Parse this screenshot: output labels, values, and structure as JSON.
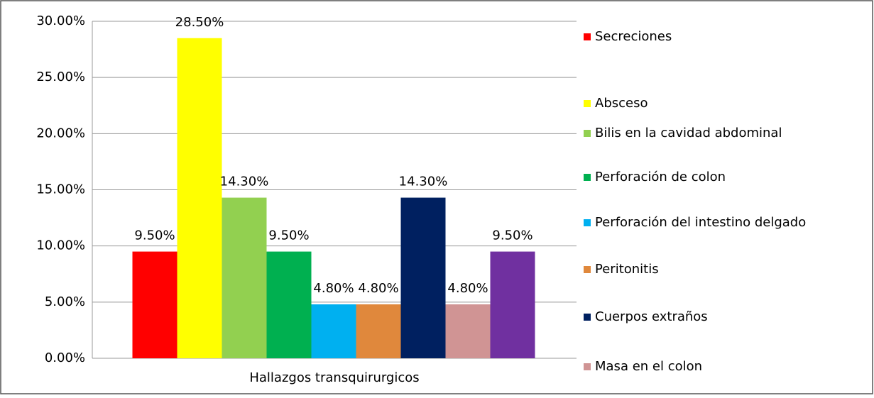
{
  "chart_data": {
    "type": "bar",
    "categories": [
      "Hallazgos transquirurgicos"
    ],
    "series": [
      {
        "name": "Secreciones",
        "color": "#ff0000",
        "values": [
          9.5
        ],
        "value_labels": [
          "9.50%"
        ]
      },
      {
        "name": "Absceso",
        "color": "#ffff00",
        "values": [
          28.5
        ],
        "value_labels": [
          "28.50%"
        ]
      },
      {
        "name": "Bilis en la cavidad abdominal",
        "color": "#92d050",
        "values": [
          14.3
        ],
        "value_labels": [
          "14.30%"
        ]
      },
      {
        "name": "Perforación de colon",
        "color": "#00b050",
        "values": [
          9.5
        ],
        "value_labels": [
          "9.50%"
        ]
      },
      {
        "name": "Perforación del intestino delgado",
        "color": "#00b0f0",
        "values": [
          4.8
        ],
        "value_labels": [
          "4.80%"
        ]
      },
      {
        "name": "Peritonitis",
        "color": "#e0883c",
        "values": [
          4.8
        ],
        "value_labels": [
          "4.80%"
        ]
      },
      {
        "name": "Cuerpos extraños",
        "color": "#002060",
        "values": [
          14.3
        ],
        "value_labels": [
          "14.30%"
        ]
      },
      {
        "name": "Masa en el colon",
        "color": "#d09494",
        "values": [
          4.8
        ],
        "value_labels": [
          "4.80%"
        ]
      },
      {
        "color": "#7030a0",
        "values": [
          9.5
        ],
        "value_labels": [
          "9.50%"
        ]
      }
    ],
    "ylim": [
      0,
      30
    ],
    "yticks": [
      {
        "value": 0,
        "label": "0.00%"
      },
      {
        "value": 5,
        "label": "5.00%"
      },
      {
        "value": 10,
        "label": "10.00%"
      },
      {
        "value": 15,
        "label": "15.00%"
      },
      {
        "value": 20,
        "label": "20.00%"
      },
      {
        "value": 25,
        "label": "25.00%"
      },
      {
        "value": 30,
        "label": "30.00%"
      }
    ],
    "grid": true,
    "legend": "right"
  }
}
